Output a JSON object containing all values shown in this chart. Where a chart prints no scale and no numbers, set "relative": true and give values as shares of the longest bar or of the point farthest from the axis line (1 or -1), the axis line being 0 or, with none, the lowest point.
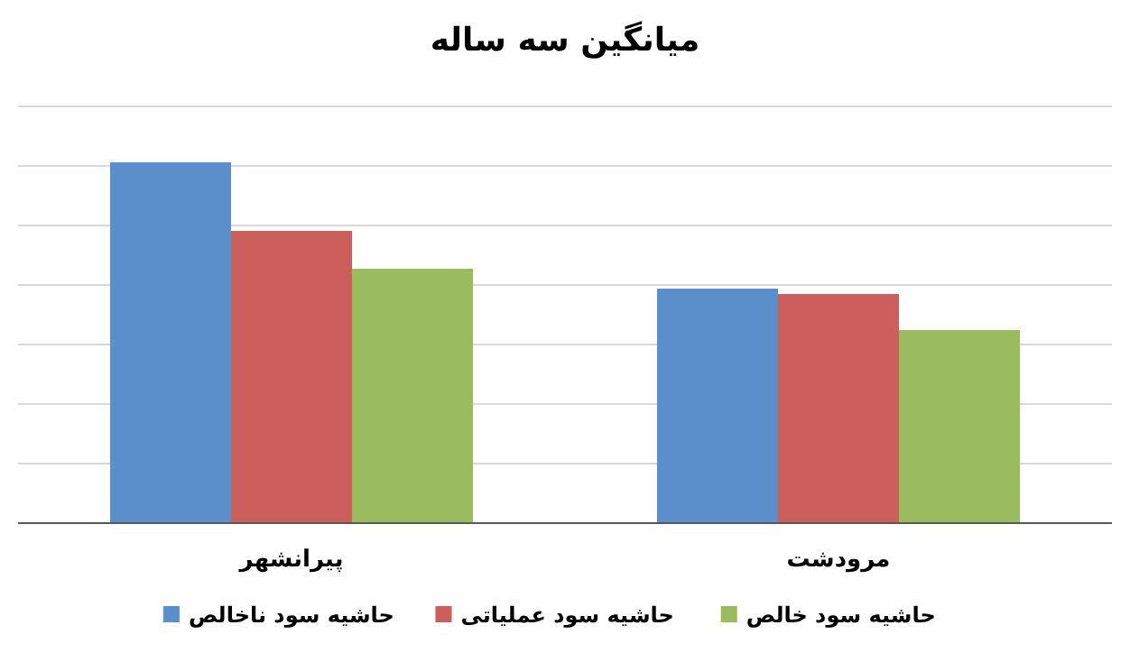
{
  "chart_data": {
    "type": "bar",
    "title": "میانگین سه ساله",
    "relative": true,
    "grid": "y",
    "legend": "bottom",
    "categories": [
      "پیرانشهر",
      "مرودشت"
    ],
    "series": [
      {
        "name": "حاشیه سود ناخالص",
        "color": "#5b8fcc",
        "values": [
          1,
          0.65
        ]
      },
      {
        "name": "حاشیه سود عملیاتی",
        "color": "#cc5f5c",
        "values": [
          0.81,
          0.635
        ]
      },
      {
        "name": "حاشیه سود خالص",
        "color": "#9bbb5f",
        "values": [
          0.705,
          0.535
        ]
      }
    ]
  }
}
